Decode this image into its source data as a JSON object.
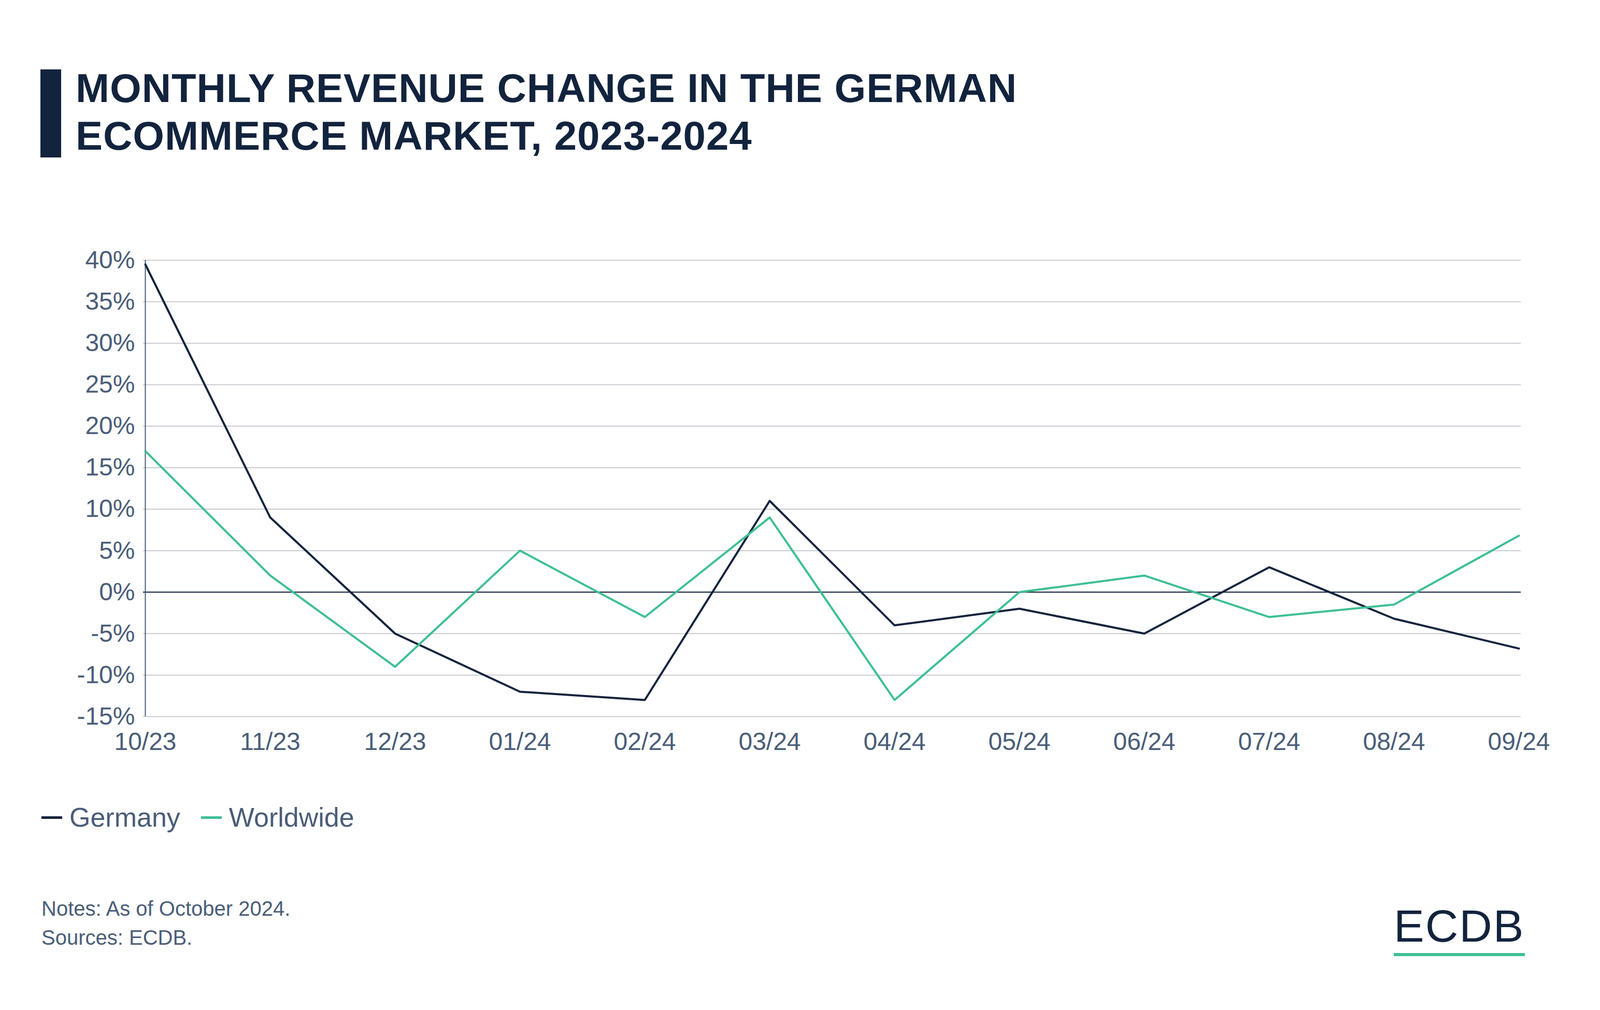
{
  "chart_data": {
    "type": "line",
    "title": "MONTHLY REVENUE CHANGE IN THE GERMAN ECOMMERCE MARKET, 2023-2024",
    "categories": [
      "10/23",
      "11/23",
      "12/23",
      "01/24",
      "02/24",
      "03/24",
      "04/24",
      "05/24",
      "06/24",
      "07/24",
      "08/24",
      "09/24"
    ],
    "series": [
      {
        "name": "Germany",
        "color": "#12233d",
        "values": [
          39.5,
          9,
          -5,
          -12,
          -13,
          11,
          -4,
          -2,
          -5,
          3,
          -3.2,
          -6.8
        ]
      },
      {
        "name": "Worldwide",
        "color": "#3dbf94",
        "values": [
          17,
          2,
          -9,
          5,
          -3,
          9,
          -13,
          0,
          2,
          -3,
          -1.5,
          6.8
        ]
      }
    ],
    "ylim": [
      -15,
      40
    ],
    "yticks": [
      {
        "value": -15,
        "label": "-15%"
      },
      {
        "value": -10,
        "label": "-10%"
      },
      {
        "value": -5,
        "label": "-5%"
      },
      {
        "value": 0,
        "label": "0%"
      },
      {
        "value": 5,
        "label": "5%"
      },
      {
        "value": 10,
        "label": "10%"
      },
      {
        "value": 15,
        "label": "15%"
      },
      {
        "value": 20,
        "label": "20%"
      },
      {
        "value": 25,
        "label": "25%"
      },
      {
        "value": 30,
        "label": "30%"
      },
      {
        "value": 35,
        "label": "35%"
      },
      {
        "value": 40,
        "label": "40%"
      }
    ],
    "grid": true,
    "legend": "bottom-left",
    "notes": "Notes: As of October 2024.",
    "source": "Sources: ECDB.",
    "logo": "ECDB"
  }
}
